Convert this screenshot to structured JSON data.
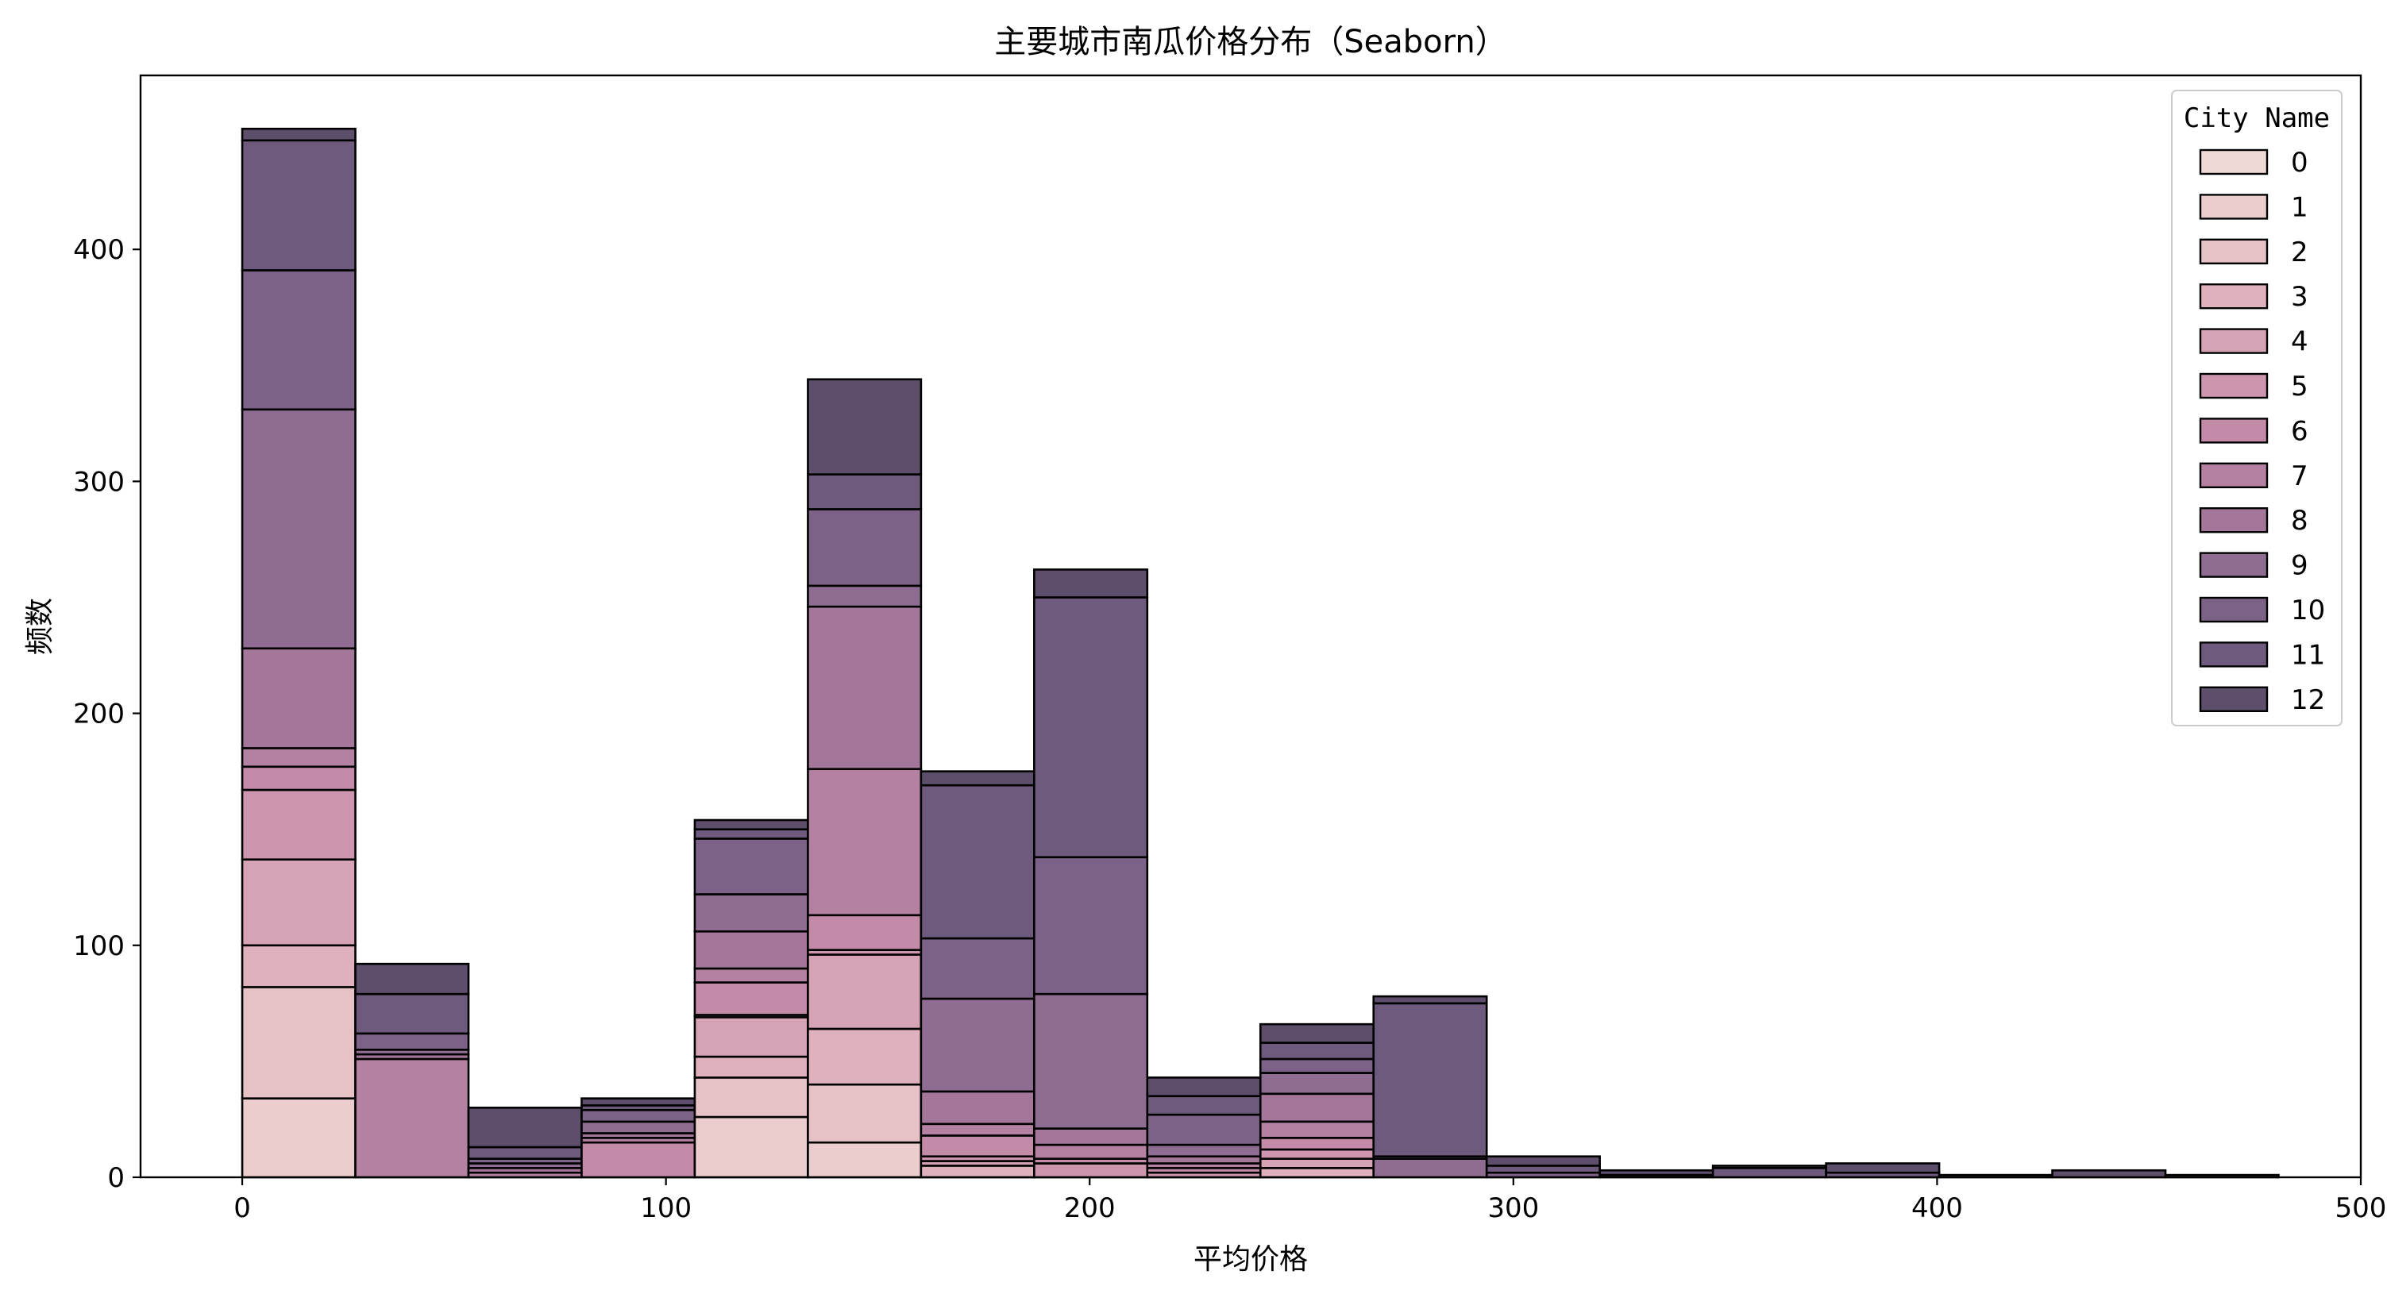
{
  "chart_data": {
    "type": "bar",
    "subtype": "stacked-histogram",
    "title": "主要城市南瓜价格分布（Seaborn）",
    "xlabel": "平均价格",
    "ylabel": "频数",
    "xlim": [
      -24,
      500
    ],
    "ylim": [
      0,
      475
    ],
    "x_ticks": [
      0,
      100,
      200,
      300,
      400,
      500
    ],
    "y_ticks": [
      0,
      100,
      200,
      300,
      400
    ],
    "bin_start": 0,
    "bin_width": 26.7,
    "n_bins": 18,
    "legend": {
      "title": "City Name",
      "placement": "top-right",
      "entries": [
        "0",
        "1",
        "2",
        "3",
        "4",
        "5",
        "6",
        "7",
        "8",
        "9",
        "10",
        "11",
        "12"
      ]
    },
    "colors": [
      "#efd9d6",
      "#ebcdcd",
      "#e6c1c6",
      "#dfb1bd",
      "#d6a2b5",
      "#cd96ae",
      "#c38ba8",
      "#b581a2",
      "#a4779a",
      "#8f6c91",
      "#7d6287",
      "#6d5a7c",
      "#5d4e6b"
    ],
    "edge_color": "#000000",
    "bin_totals": [
      452,
      92,
      30,
      34,
      154,
      344,
      175,
      262,
      43,
      66,
      78,
      9,
      3,
      5,
      6,
      1,
      3,
      1
    ],
    "stack_boundaries": [
      [
        0,
        34,
        82,
        100,
        137,
        167,
        177,
        185,
        228,
        331,
        391,
        447,
        452
      ],
      [
        0,
        51,
        53,
        55,
        62,
        79,
        92
      ],
      [
        0,
        2,
        4,
        6,
        8,
        13,
        30
      ],
      [
        0,
        15,
        17,
        19,
        24,
        29,
        31,
        34
      ],
      [
        0,
        26,
        43,
        52,
        69,
        70,
        84,
        90,
        106,
        122,
        146,
        150,
        154
      ],
      [
        0,
        15,
        40,
        64,
        96,
        98,
        113,
        176,
        246,
        255,
        288,
        303,
        344
      ],
      [
        0,
        5,
        7,
        9,
        18,
        23,
        37,
        77,
        103,
        169,
        175
      ],
      [
        0,
        6,
        8,
        14,
        21,
        79,
        138,
        250,
        262
      ],
      [
        0,
        2,
        4,
        6,
        9,
        14,
        27,
        35,
        43
      ],
      [
        0,
        4,
        8,
        12,
        17,
        24,
        36,
        45,
        51,
        58,
        66
      ],
      [
        0,
        8,
        9,
        75,
        78
      ],
      [
        0,
        2,
        5,
        9
      ],
      [
        0,
        1,
        3
      ],
      [
        0,
        4,
        5
      ],
      [
        0,
        2,
        6
      ],
      [
        0,
        1
      ],
      [
        0,
        3
      ],
      [
        0,
        1
      ]
    ]
  }
}
